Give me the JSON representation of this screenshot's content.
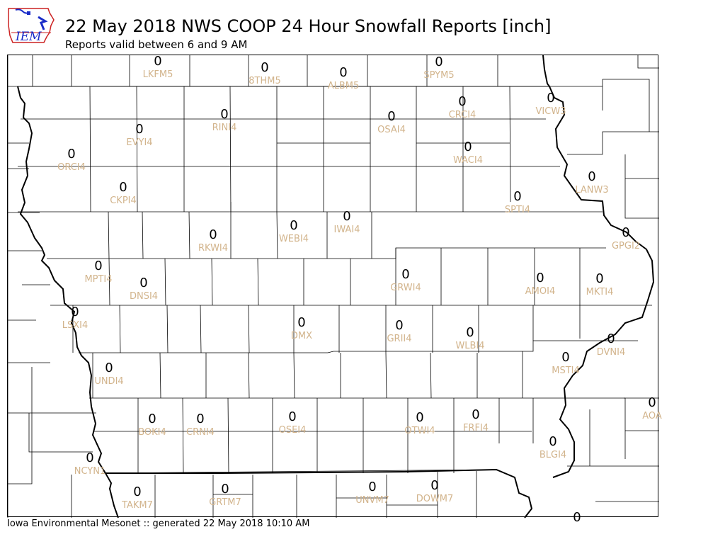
{
  "header": {
    "logo_text": "IEM",
    "title": "22 May 2018 NWS COOP 24 Hour Snowfall Reports [inch]",
    "subtitle": "Reports valid between 6 and 9 AM"
  },
  "footer": {
    "text": "Iowa Environmental Mesonet :: generated 22 May 2018 10:10 AM"
  },
  "colors": {
    "station_id": "#d2b48c",
    "value": "#000000",
    "county_line": "#000000",
    "logo_red": "#cc2222",
    "logo_blue": "#1a2cc8"
  },
  "map": {
    "stations": [
      {
        "id": "LKFM5",
        "value": "0"
      },
      {
        "id": "8THM5",
        "value": "0"
      },
      {
        "id": "ALBM5",
        "value": "0"
      },
      {
        "id": "SPYM5",
        "value": "0"
      },
      {
        "id": "VICW3",
        "value": "0"
      },
      {
        "id": "CRCI4",
        "value": "0"
      },
      {
        "id": "RINI4",
        "value": "0"
      },
      {
        "id": "OSAI4",
        "value": "0"
      },
      {
        "id": "EVYI4",
        "value": "0"
      },
      {
        "id": "ORCI4",
        "value": "0"
      },
      {
        "id": "WACI4",
        "value": "0"
      },
      {
        "id": "LANW3",
        "value": "0"
      },
      {
        "id": "CKPI4",
        "value": "0"
      },
      {
        "id": "SPTI4",
        "value": "0"
      },
      {
        "id": "RKWI4",
        "value": "0"
      },
      {
        "id": "WEBI4",
        "value": "0"
      },
      {
        "id": "IWAI4",
        "value": "0"
      },
      {
        "id": "GPGI2",
        "value": "0"
      },
      {
        "id": "MPTI4",
        "value": "0"
      },
      {
        "id": "DNSI4",
        "value": "0"
      },
      {
        "id": "GRWI4",
        "value": "0"
      },
      {
        "id": "AMOI4",
        "value": "0"
      },
      {
        "id": "MKTI4",
        "value": "0"
      },
      {
        "id": "LSXI4",
        "value": "0"
      },
      {
        "id": "DMX",
        "value": "0"
      },
      {
        "id": "GRII4",
        "value": "0"
      },
      {
        "id": "WLBI4",
        "value": "0"
      },
      {
        "id": "DVNI4",
        "value": "0"
      },
      {
        "id": "MSTI4",
        "value": "0"
      },
      {
        "id": "UNDI4",
        "value": "0"
      },
      {
        "id": "AOA",
        "value": "0"
      },
      {
        "id": "BOKI4",
        "value": "0"
      },
      {
        "id": "CRNI4",
        "value": "0"
      },
      {
        "id": "OSEI4",
        "value": "0"
      },
      {
        "id": "OTWI4",
        "value": "0"
      },
      {
        "id": "FRFI4",
        "value": "0"
      },
      {
        "id": "BLGI4",
        "value": "0"
      },
      {
        "id": "NCYN1",
        "value": "0"
      },
      {
        "id": "TAKM7",
        "value": "0"
      },
      {
        "id": "GRTM7",
        "value": "0"
      },
      {
        "id": "UNVM7",
        "value": "0"
      },
      {
        "id": "DOWM7",
        "value": "0"
      },
      {
        "id": "",
        "value": "0"
      }
    ]
  }
}
